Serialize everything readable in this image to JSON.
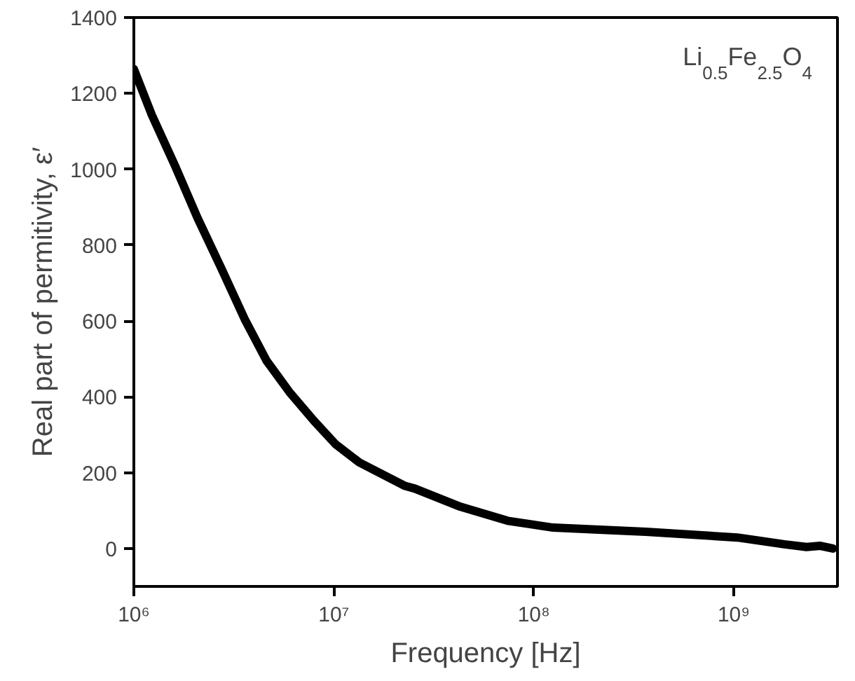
{
  "chart_data": {
    "type": "line",
    "xlabel": "Frequency [Hz]",
    "ylabel": "Real part of permitivity, ε′",
    "log": "x",
    "annotations": [
      "Li$_{0.5}$Fe$_{2.5}$O$_{4}$"
    ],
    "x": [
      1000000,
      1230000,
      1610000,
      2080000,
      2730000,
      3580000,
      4610000,
      6050000,
      7940000,
      10200000,
      13400000,
      22700000,
      25400000,
      43000000,
      74000000,
      125000000,
      363000000,
      1040000000,
      1790000000,
      2310000000,
      2710000000,
      3130000000
    ],
    "series": [
      {
        "color": "#000000",
        "values": [
          1264,
          1143,
          1008,
          872,
          740,
          605,
          495,
          410,
          337,
          275,
          227,
          165,
          158,
          110,
          73,
          55,
          44,
          29,
          11,
          4,
          7,
          0
        ]
      }
    ],
    "xlim": [
      1000000,
      3300000000
    ],
    "ylim": [
      -100,
      1400
    ],
    "xticks": [
      {
        "value": 1000000,
        "label": "10⁶"
      },
      {
        "value": 10000000,
        "label": "10⁷"
      },
      {
        "value": 100000000,
        "label": "10⁸"
      },
      {
        "value": 1000000000,
        "label": "10⁹"
      }
    ],
    "yticks": [
      0,
      200,
      400,
      600,
      800,
      1000,
      1200,
      1400
    ],
    "grid": false
  }
}
